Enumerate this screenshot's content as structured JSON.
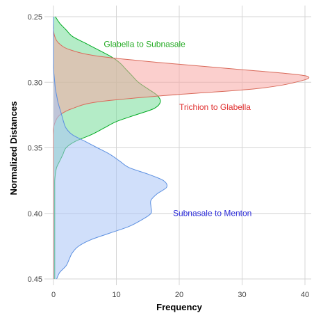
{
  "chart_data": {
    "type": "area",
    "orientation": "horizontal-density",
    "xlabel": "Frequency",
    "ylabel": "Normalized Distances",
    "xlim": [
      0,
      41
    ],
    "ylim": [
      0.45,
      0.25
    ],
    "y_reversed": true,
    "x_ticks": [
      0,
      10,
      20,
      30,
      40
    ],
    "x_tick_labels": [
      "0",
      "10",
      "20",
      "30",
      "40"
    ],
    "y_ticks": [
      0.25,
      0.3,
      0.35,
      0.4,
      0.45
    ],
    "y_tick_labels": [
      "0.25",
      "0.30",
      "0.35",
      "0.40",
      "0.45"
    ],
    "grid": true,
    "legend": "none",
    "series": [
      {
        "name": "Glabella to Subnasale",
        "color": "#00aa22",
        "fill": "#77dd99",
        "y": [
          0.25,
          0.255,
          0.26,
          0.265,
          0.27,
          0.275,
          0.28,
          0.285,
          0.29,
          0.295,
          0.3,
          0.305,
          0.31,
          0.315,
          0.32,
          0.325,
          0.33,
          0.335,
          0.34,
          0.345,
          0.35,
          0.355,
          0.36,
          0.365,
          0.37,
          0.375,
          0.38,
          0.385,
          0.39,
          0.395,
          0.4,
          0.405,
          0.41,
          0.415,
          0.42,
          0.425,
          0.43,
          0.435,
          0.44,
          0.445,
          0.45
        ],
        "values": [
          0.3,
          1.0,
          2.0,
          3.0,
          5.0,
          7.0,
          9.0,
          10.5,
          11.5,
          12.5,
          13.5,
          15.0,
          16.5,
          17.0,
          16.0,
          13.0,
          10.0,
          8.0,
          6.0,
          3.5,
          2.0,
          1.5,
          1.0,
          0.5,
          0.3,
          0.2,
          0.2,
          0.2,
          0.2,
          0.2,
          0.2,
          0.2,
          0.2,
          0.2,
          0.2,
          0.2,
          0.2,
          0.2,
          0.2,
          0.2,
          0.2
        ]
      },
      {
        "name": "Trichion to Glabella",
        "color": "#d96a5a",
        "fill": "#f7a8a4",
        "y": [
          0.25,
          0.255,
          0.26,
          0.265,
          0.27,
          0.275,
          0.28,
          0.285,
          0.29,
          0.295,
          0.3,
          0.305,
          0.31,
          0.315,
          0.32,
          0.325,
          0.33,
          0.335,
          0.34,
          0.345,
          0.35,
          0.355,
          0.36,
          0.365,
          0.37,
          0.375,
          0.38,
          0.385,
          0.39,
          0.395,
          0.4,
          0.405,
          0.41,
          0.415,
          0.42,
          0.425,
          0.43,
          0.435,
          0.44,
          0.445,
          0.45
        ],
        "values": [
          0.0,
          0.0,
          0.0,
          0.2,
          0.8,
          2.5,
          7.0,
          17.0,
          29.0,
          40.0,
          38.5,
          32.0,
          18.0,
          7.0,
          3.0,
          1.0,
          0.3,
          0.0,
          0.0,
          0.0,
          0.0,
          0.0,
          0.0,
          0.0,
          0.0,
          0.0,
          0.0,
          0.0,
          0.0,
          0.0,
          0.0,
          0.0,
          0.0,
          0.0,
          0.0,
          0.0,
          0.0,
          0.0,
          0.0,
          0.0,
          0.0
        ]
      },
      {
        "name": "Subnasale to Menton",
        "color": "#5b8fe0",
        "fill": "#a9c4f5",
        "y": [
          0.25,
          0.255,
          0.26,
          0.265,
          0.27,
          0.275,
          0.28,
          0.285,
          0.29,
          0.295,
          0.3,
          0.305,
          0.31,
          0.315,
          0.32,
          0.325,
          0.33,
          0.335,
          0.34,
          0.345,
          0.35,
          0.355,
          0.36,
          0.365,
          0.37,
          0.375,
          0.38,
          0.385,
          0.39,
          0.395,
          0.4,
          0.405,
          0.41,
          0.415,
          0.42,
          0.425,
          0.43,
          0.435,
          0.44,
          0.445,
          0.45
        ],
        "values": [
          0.0,
          0.0,
          0.0,
          0.0,
          0.0,
          0.0,
          0.0,
          0.0,
          0.0,
          0.1,
          0.2,
          0.3,
          0.5,
          0.7,
          1.0,
          1.3,
          1.6,
          2.0,
          3.0,
          5.0,
          7.0,
          9.0,
          10.5,
          12.0,
          15.0,
          17.5,
          18.0,
          16.5,
          15.5,
          15.5,
          15.5,
          14.0,
          12.0,
          9.0,
          6.0,
          4.0,
          3.0,
          2.5,
          2.0,
          1.0,
          0.5
        ]
      }
    ]
  },
  "annotations": [
    {
      "name": "annotation-glabella-subnasale",
      "text": "Glabella to Subnasale",
      "series": 0,
      "color": "#22aa22",
      "x": 8,
      "y": 0.273
    },
    {
      "name": "annotation-trichion-glabella",
      "text": "Trichion to Glabella",
      "series": 1,
      "color": "#e03030",
      "x": 20,
      "y": 0.321
    },
    {
      "name": "annotation-subnasale-menton",
      "text": "Subnasale to Menton",
      "series": 2,
      "color": "#2a2ad8",
      "x": 19,
      "y": 0.402
    }
  ]
}
